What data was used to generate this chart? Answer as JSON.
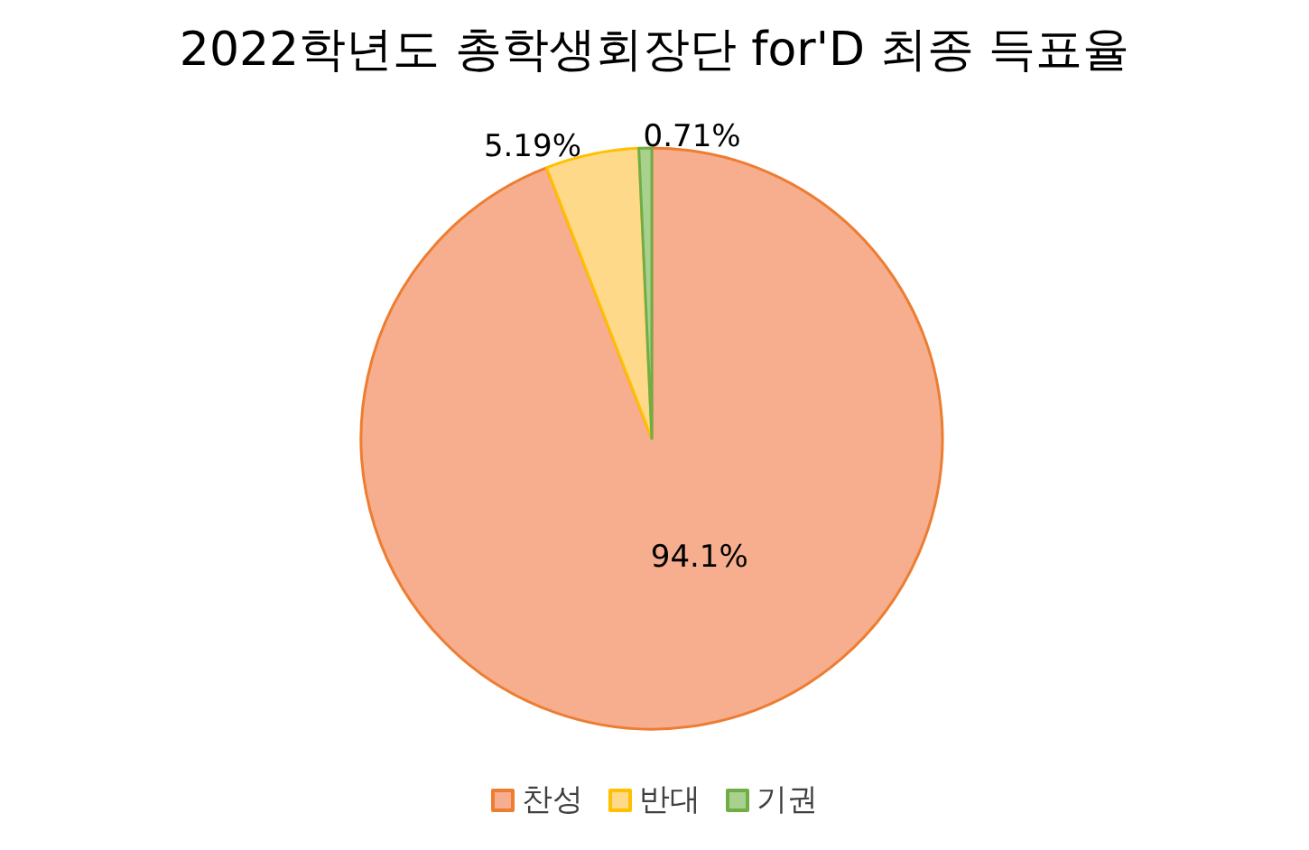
{
  "chart_data": {
    "type": "pie",
    "title": "2022학년도 총학생회장단 for'D 최종 득표율",
    "categories": [
      "찬성",
      "반대",
      "기권"
    ],
    "values": [
      94.1,
      5.19,
      0.71
    ],
    "colors": [
      "#f6ae8f",
      "#ffd98a",
      "#a9d18e"
    ],
    "value_labels": [
      "94.1%",
      "5.19%",
      "0.71%"
    ],
    "legend": "bottom"
  }
}
